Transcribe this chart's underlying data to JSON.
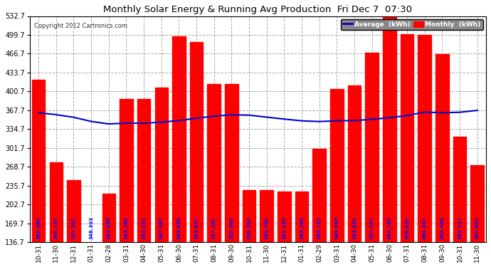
{
  "title": "Monthly Solar Energy & Running Avg Production  Fri Dec 7  07:30",
  "copyright": "Copyright 2012 Cartronics.com",
  "categories": [
    "10-31",
    "11-30",
    "12-31",
    "01-31",
    "02-28",
    "03-31",
    "04-30",
    "05-31",
    "06-30",
    "07-31",
    "08-31",
    "09-30",
    "10-31",
    "11-30",
    "12-31",
    "01-31",
    "02-29",
    "03-31",
    "04-30",
    "05-31",
    "06-30",
    "07-31",
    "08-31",
    "09-30",
    "10-31",
    "11-30"
  ],
  "monthly_values": [
    421,
    277,
    246,
    136,
    222,
    388,
    388,
    407,
    497,
    487,
    414,
    414,
    228,
    228,
    226,
    226,
    301,
    405,
    411,
    469,
    538,
    501,
    500,
    466,
    321,
    272
  ],
  "bar_values_labels": [
    "363.460",
    "360.175",
    "355.562",
    "348.303",
    "343.896",
    "345.366",
    "345.033",
    "347.067",
    "349.828",
    "353.953",
    "357.559",
    "359.800",
    "359.303",
    "355.768",
    "352.445",
    "349.306",
    "348.115",
    "349.345",
    "349.845",
    "351.997",
    "354.765",
    "358.635",
    "364.567",
    "363.458",
    "364.311",
    "367.605"
  ],
  "avg_values": [
    363.46,
    360.175,
    355.562,
    348.303,
    343.896,
    345.366,
    345.033,
    347.067,
    349.828,
    353.953,
    357.559,
    359.8,
    359.303,
    355.768,
    352.445,
    349.306,
    348.115,
    349.345,
    349.845,
    351.997,
    354.765,
    358.635,
    364.567,
    363.458,
    364.311,
    367.605
  ],
  "ylim_min": 136.7,
  "ylim_max": 532.7,
  "yticks": [
    136.7,
    169.7,
    202.7,
    235.7,
    268.7,
    301.7,
    334.7,
    367.7,
    400.7,
    433.7,
    466.7,
    499.7,
    532.7
  ],
  "bar_color": "#ff0000",
  "avg_line_color": "#0000cc",
  "bg_color": "#ffffff",
  "plot_bg_color": "#ffffff",
  "grid_color": "#aaaaaa",
  "title_color": "#000000",
  "legend_avg_bg": "#0000cc",
  "legend_monthly_bg": "#ff0000",
  "legend_text_color": "#ffffff"
}
